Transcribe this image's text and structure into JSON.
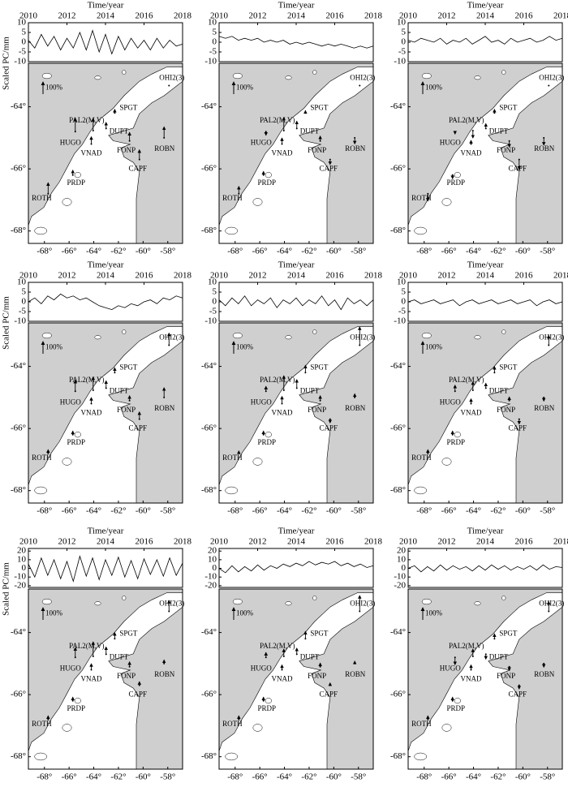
{
  "map": {
    "xlim": [
      -69.3,
      -56.8
    ],
    "ylim": [
      -68.4,
      -62.6
    ],
    "xticks": [
      {
        "value": -68,
        "label": "-68°"
      },
      {
        "value": -66,
        "label": "-66°"
      },
      {
        "value": -64,
        "label": "-64°"
      },
      {
        "value": -62,
        "label": "-62°"
      },
      {
        "value": -60,
        "label": "-60°"
      },
      {
        "value": -58,
        "label": "-58°"
      }
    ],
    "yticks": [
      {
        "value": -64,
        "label": "-64°"
      },
      {
        "value": -66,
        "label": "-66°"
      },
      {
        "value": -68,
        "label": "-68°"
      }
    ],
    "scale": {
      "value": 100,
      "label": "100%"
    },
    "stations": [
      {
        "name": "OHI2(3)",
        "lon": -57.9,
        "lat": -63.32
      },
      {
        "name": "PAL2(M,V)",
        "lon": -64.05,
        "lat": -64.77
      },
      {
        "name": "SPGT",
        "lon": -62.3,
        "lat": -64.2
      },
      {
        "name": "DUPT",
        "lon": -63.0,
        "lat": -64.7
      },
      {
        "name": "HUGO",
        "lon": -65.5,
        "lat": -64.8
      },
      {
        "name": "VNAD",
        "lon": -64.2,
        "lat": -65.2
      },
      {
        "name": "FONP",
        "lon": -61.1,
        "lat": -65.1
      },
      {
        "name": "ROBN",
        "lon": -58.3,
        "lat": -65.0
      },
      {
        "name": "CAPF",
        "lon": -60.3,
        "lat": -65.7
      },
      {
        "name": "PRDP",
        "lon": -65.7,
        "lat": -66.2
      },
      {
        "name": "ROTH",
        "lon": -67.7,
        "lat": -66.8
      }
    ]
  },
  "chart_data": [
    {
      "type": "line",
      "xlabel": "Time/year",
      "ylabel": "Scaled PC/mm",
      "x": [
        2010,
        2010.33,
        2010.67,
        2011,
        2011.33,
        2011.67,
        2012,
        2012.33,
        2012.67,
        2013,
        2013.33,
        2013.67,
        2014,
        2014.33,
        2014.67,
        2015,
        2015.33,
        2015.67,
        2016,
        2016.33,
        2016.67,
        2017,
        2017.33,
        2017.67,
        2018
      ],
      "values": [
        1,
        -3,
        4,
        -2,
        3,
        -4,
        2,
        -3,
        5,
        -4,
        6,
        -5,
        4,
        -6,
        3,
        -4,
        2,
        -3,
        1,
        -4,
        2,
        -3,
        1,
        -2,
        -1
      ],
      "xlim": [
        2010,
        2018
      ],
      "xticks": [
        2010,
        2012,
        2014,
        2016,
        2018
      ],
      "ylim": [
        -10,
        10
      ],
      "yticks": [
        -10,
        -5,
        0,
        5,
        10
      ],
      "arrows": [
        null,
        100,
        30,
        50,
        110,
        60,
        70,
        90,
        80,
        40,
        90
      ]
    },
    {
      "type": "line",
      "xlabel": "Time/year",
      "x": [
        2010,
        2010.33,
        2010.67,
        2011,
        2011.33,
        2011.67,
        2012,
        2012.33,
        2012.67,
        2013,
        2013.33,
        2013.67,
        2014,
        2014.33,
        2014.67,
        2015,
        2015.33,
        2015.67,
        2016,
        2016.33,
        2016.67,
        2017,
        2017.33,
        2017.67,
        2018
      ],
      "values": [
        3,
        2,
        3,
        1,
        2,
        1,
        2,
        0,
        1,
        0,
        1,
        -1,
        0,
        -1,
        0,
        -1,
        -2,
        -1,
        -2,
        -1,
        -2,
        -3,
        -2,
        -3,
        -2
      ],
      "xlim": [
        2010,
        2018
      ],
      "xticks": [
        2010,
        2012,
        2014,
        2016,
        2018
      ],
      "ylim": [
        -10,
        10
      ],
      "yticks": [
        -10,
        -5,
        0,
        5,
        10
      ],
      "arrows": [
        null,
        110,
        20,
        60,
        -30,
        50,
        40,
        -50,
        -40,
        30,
        60
      ]
    },
    {
      "type": "line",
      "xlabel": "Time/year",
      "x": [
        2010,
        2010.33,
        2010.67,
        2011,
        2011.33,
        2011.67,
        2012,
        2012.33,
        2012.67,
        2013,
        2013.33,
        2013.67,
        2014,
        2014.33,
        2014.67,
        2015,
        2015.33,
        2015.67,
        2016,
        2016.33,
        2016.67,
        2017,
        2017.33,
        2017.67,
        2018
      ],
      "values": [
        1,
        0,
        2,
        1,
        0,
        2,
        -1,
        1,
        0,
        2,
        -1,
        1,
        3,
        0,
        1,
        -1,
        2,
        0,
        1,
        2,
        0,
        1,
        3,
        1,
        2
      ],
      "xlim": [
        2010,
        2018
      ],
      "xticks": [
        2010,
        2012,
        2014,
        2016,
        2018
      ],
      "ylim": [
        -10,
        10
      ],
      "yticks": [
        -10,
        -5,
        0,
        5,
        10
      ],
      "arrows": [
        null,
        -60,
        30,
        40,
        -20,
        30,
        -50,
        -60,
        -80,
        -30,
        -60
      ]
    },
    {
      "type": "line",
      "xlabel": "Time/year",
      "ylabel": "Scaled PC/mm",
      "x": [
        2010,
        2010.33,
        2010.67,
        2011,
        2011.33,
        2011.67,
        2012,
        2012.33,
        2012.67,
        2013,
        2013.33,
        2013.67,
        2014,
        2014.33,
        2014.67,
        2015,
        2015.33,
        2015.67,
        2016,
        2016.33,
        2016.67,
        2017,
        2017.33,
        2017.67,
        2018
      ],
      "values": [
        0,
        2,
        -1,
        3,
        1,
        4,
        2,
        3,
        1,
        2,
        0,
        -2,
        -3,
        -4,
        -2,
        -3,
        -1,
        -2,
        0,
        1,
        -1,
        2,
        1,
        3,
        2
      ],
      "xlim": [
        2010,
        2018
      ],
      "xticks": [
        2010,
        2012,
        2014,
        2016,
        2018
      ],
      "ylim": [
        -10,
        10
      ],
      "yticks": [
        -10,
        -5,
        0,
        5,
        10
      ],
      "arrows": [
        100,
        110,
        40,
        60,
        90,
        50,
        40,
        80,
        60,
        30,
        30
      ]
    },
    {
      "type": "line",
      "xlabel": "Time/year",
      "x": [
        2010,
        2010.33,
        2010.67,
        2011,
        2011.33,
        2011.67,
        2012,
        2012.33,
        2012.67,
        2013,
        2013.33,
        2013.67,
        2014,
        2014.33,
        2014.67,
        2015,
        2015.33,
        2015.67,
        2016,
        2016.33,
        2016.67,
        2017,
        2017.33,
        2017.67,
        2018
      ],
      "values": [
        1,
        -2,
        2,
        -1,
        3,
        -2,
        1,
        -1,
        2,
        -3,
        1,
        -1,
        2,
        -2,
        1,
        -1,
        3,
        -2,
        1,
        -4,
        2,
        -1,
        1,
        -2,
        1
      ],
      "xlim": [
        2010,
        2018
      ],
      "xticks": [
        2010,
        2012,
        2014,
        2016,
        2018
      ],
      "ylim": [
        -10,
        10
      ],
      "yticks": [
        -10,
        -5,
        0,
        5,
        10
      ],
      "arrows": [
        150,
        120,
        60,
        70,
        40,
        60,
        40,
        30,
        -30,
        30,
        20
      ]
    },
    {
      "type": "line",
      "xlabel": "Time/year",
      "x": [
        2010,
        2010.33,
        2010.67,
        2011,
        2011.33,
        2011.67,
        2012,
        2012.33,
        2012.67,
        2013,
        2013.33,
        2013.67,
        2014,
        2014.33,
        2014.67,
        2015,
        2015.33,
        2015.67,
        2016,
        2016.33,
        2016.67,
        2017,
        2017.33,
        2017.67,
        2018
      ],
      "values": [
        0,
        1,
        -1,
        0,
        1,
        -1,
        0,
        1,
        -2,
        0,
        1,
        -1,
        0,
        1,
        -1,
        0,
        1,
        -1,
        0,
        1,
        -2,
        0,
        1,
        -1,
        0
      ],
      "xlim": [
        2010,
        2018
      ],
      "xticks": [
        2010,
        2012,
        2014,
        2016,
        2018
      ],
      "ylim": [
        -10,
        10
      ],
      "yticks": [
        -10,
        -5,
        0,
        5,
        10
      ],
      "arrows": [
        80,
        70,
        50,
        40,
        50,
        40,
        30,
        -30,
        -40,
        30,
        30
      ]
    },
    {
      "type": "line",
      "xlabel": "Time/year",
      "ylabel": "Scaled PC/mm",
      "x": [
        2010,
        2010.33,
        2010.67,
        2011,
        2011.33,
        2011.67,
        2012,
        2012.33,
        2012.67,
        2013,
        2013.33,
        2013.67,
        2014,
        2014.33,
        2014.67,
        2015,
        2015.33,
        2015.67,
        2016,
        2016.33,
        2016.67,
        2017,
        2017.33,
        2017.67,
        2018
      ],
      "values": [
        5,
        -10,
        12,
        -8,
        10,
        -12,
        8,
        -15,
        14,
        -9,
        12,
        -13,
        10,
        -8,
        13,
        -10,
        9,
        -12,
        11,
        -7,
        10,
        -9,
        12,
        -8,
        6
      ],
      "xlim": [
        2010,
        2018
      ],
      "xticks": [
        2010,
        2012,
        2014,
        2016,
        2018
      ],
      "ylim": [
        -22,
        23
      ],
      "yticks": [
        -20,
        -10,
        0,
        10,
        20
      ],
      "arrows": [
        90,
        120,
        50,
        60,
        80,
        50,
        40,
        30,
        30,
        30,
        30
      ]
    },
    {
      "type": "line",
      "xlabel": "Time/year",
      "x": [
        2010,
        2010.33,
        2010.67,
        2011,
        2011.33,
        2011.67,
        2012,
        2012.33,
        2012.67,
        2013,
        2013.33,
        2013.67,
        2014,
        2014.33,
        2014.67,
        2015,
        2015.33,
        2015.67,
        2016,
        2016.33,
        2016.67,
        2017,
        2017.33,
        2017.67,
        2018
      ],
      "values": [
        0,
        -5,
        3,
        -4,
        2,
        -3,
        4,
        -2,
        3,
        0,
        5,
        2,
        6,
        3,
        8,
        4,
        7,
        5,
        8,
        3,
        6,
        2,
        5,
        1,
        3
      ],
      "xlim": [
        2010,
        2018
      ],
      "xticks": [
        2010,
        2012,
        2014,
        2016,
        2018
      ],
      "ylim": [
        -22,
        23
      ],
      "yticks": [
        -20,
        -10,
        0,
        10,
        20
      ],
      "arrows": [
        130,
        60,
        60,
        50,
        40,
        40,
        30,
        20,
        20,
        30,
        30
      ]
    },
    {
      "type": "line",
      "xlabel": "Time/year",
      "x": [
        2010,
        2010.33,
        2010.67,
        2011,
        2011.33,
        2011.67,
        2012,
        2012.33,
        2012.67,
        2013,
        2013.33,
        2013.67,
        2014,
        2014.33,
        2014.67,
        2015,
        2015.33,
        2015.67,
        2016,
        2016.33,
        2016.67,
        2017,
        2017.33,
        2017.67,
        2018
      ],
      "values": [
        0,
        3,
        -4,
        2,
        -3,
        4,
        -2,
        3,
        -1,
        2,
        -3,
        3,
        -2,
        4,
        -1,
        3,
        -2,
        2,
        -1,
        3,
        -2,
        4,
        -1,
        2,
        1
      ],
      "xlim": [
        2010,
        2018
      ],
      "xticks": [
        2010,
        2012,
        2014,
        2016,
        2018
      ],
      "ylim": [
        -22,
        23
      ],
      "yticks": [
        -20,
        -10,
        0,
        10,
        20
      ],
      "arrows": [
        80,
        60,
        40,
        -40,
        -60,
        40,
        -30,
        -30,
        -30,
        30,
        30
      ]
    }
  ]
}
